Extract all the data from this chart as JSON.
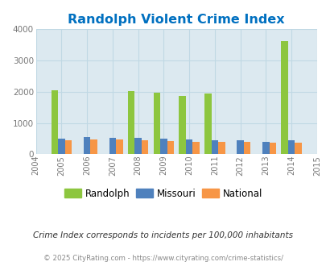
{
  "title": "Randolph Violent Crime Index",
  "years": [
    2004,
    2005,
    2006,
    2007,
    2008,
    2009,
    2010,
    2011,
    2012,
    2013,
    2014,
    2015
  ],
  "bar_years": [
    2005,
    2006,
    2007,
    2008,
    2009,
    2010,
    2011,
    2012,
    2013,
    2014
  ],
  "randolph": [
    2050,
    0,
    0,
    2020,
    1980,
    1860,
    1950,
    0,
    0,
    3620
  ],
  "missouri": [
    510,
    550,
    520,
    530,
    500,
    470,
    440,
    440,
    410,
    440
  ],
  "national": [
    460,
    470,
    470,
    460,
    430,
    410,
    390,
    390,
    370,
    370
  ],
  "randolph_color": "#8dc63f",
  "missouri_color": "#4f81bd",
  "national_color": "#f79646",
  "bg_color": "#dce9f0",
  "ylim": [
    0,
    4000
  ],
  "yticks": [
    0,
    1000,
    2000,
    3000,
    4000
  ],
  "title_color": "#0070c0",
  "subtitle": "Crime Index corresponds to incidents per 100,000 inhabitants",
  "footer": "© 2025 CityRating.com - https://www.cityrating.com/crime-statistics/",
  "bar_width": 0.27,
  "grid_color": "#c0d8e4"
}
